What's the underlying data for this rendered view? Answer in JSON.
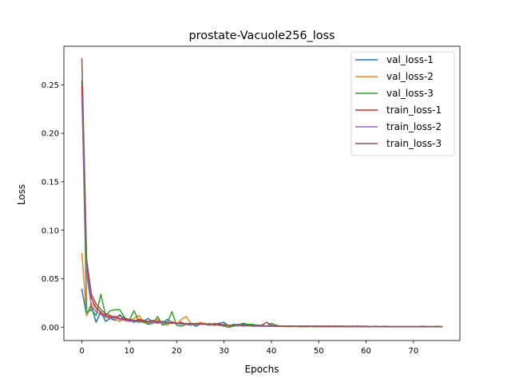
{
  "chart_data": {
    "type": "line",
    "title": "prostate-Vacuole256_loss",
    "xlabel": "Epochs",
    "ylabel": "Loss",
    "xlim": [
      -3.8,
      79.8
    ],
    "ylim": [
      -0.0138,
      0.2898
    ],
    "xticks": [
      0,
      10,
      20,
      30,
      40,
      50,
      60,
      70
    ],
    "xtick_labels": [
      "0",
      "10",
      "20",
      "30",
      "40",
      "50",
      "60",
      "70"
    ],
    "yticks": [
      0.0,
      0.05,
      0.1,
      0.15,
      0.2,
      0.25
    ],
    "ytick_labels": [
      "0.00",
      "0.05",
      "0.10",
      "0.15",
      "0.20",
      "0.25"
    ],
    "grid": false,
    "legend_position": "top-right",
    "x": [
      0,
      1,
      2,
      3,
      4,
      5,
      6,
      7,
      8,
      9,
      10,
      11,
      12,
      13,
      14,
      15,
      16,
      17,
      18,
      19,
      20,
      21,
      22,
      23,
      24,
      25,
      26,
      27,
      28,
      29,
      30,
      31,
      32,
      33,
      34,
      35,
      36,
      37,
      38,
      39,
      40,
      41,
      42,
      43,
      44,
      45,
      46,
      47,
      48,
      49,
      50,
      51,
      52,
      53,
      54,
      55,
      56,
      57,
      58,
      59,
      60,
      61,
      62,
      63,
      64,
      65,
      66,
      67,
      68,
      69,
      70,
      71,
      72,
      73,
      74,
      75,
      76
    ],
    "series": [
      {
        "name": "val_loss-1",
        "color": "#1f77b4",
        "values": [
          0.039,
          0.012,
          0.022,
          0.005,
          0.016,
          0.006,
          0.009,
          0.007,
          0.013,
          0.007,
          0.008,
          0.005,
          0.007,
          0.006,
          0.009,
          0.005,
          0.006,
          0.004,
          0.008,
          0.005,
          0.004,
          0.005,
          0.003,
          0.004,
          0.001,
          0.003,
          0.004,
          0.002,
          0.003,
          0.004,
          0.005,
          0.001,
          0.003,
          0.002,
          0.003,
          0.002,
          0.001,
          0.002,
          0.002,
          0.001,
          0.002,
          0.001,
          0.001,
          0.001,
          0.001,
          0.001,
          0.0005,
          0.001,
          0.001,
          0.0005,
          0.001,
          0.0005,
          0.001,
          0.0005,
          0.001,
          0.0005,
          0.0005,
          0.0005,
          0.001,
          0.0005,
          0.0005,
          0.0005,
          0.0005,
          0.0005,
          0.001,
          0.0005,
          0.0005,
          0.0005,
          0.0005,
          0.0005,
          0.0005,
          0.0005,
          0.001,
          0.0005,
          0.0005,
          0.0005,
          0.0005
        ]
      },
      {
        "name": "val_loss-2",
        "color": "#ff7f0e",
        "values": [
          0.076,
          0.012,
          0.025,
          0.02,
          0.015,
          0.01,
          0.012,
          0.008,
          0.006,
          0.01,
          0.007,
          0.009,
          0.012,
          0.006,
          0.004,
          0.006,
          0.008,
          0.004,
          0.002,
          0.006,
          0.003,
          0.008,
          0.011,
          0.004,
          0.003,
          0.005,
          0.003,
          0.004,
          0.002,
          0.003,
          0.002,
          0.001,
          0.002,
          0.001,
          0.002,
          0.001,
          0.002,
          0.001,
          0.001,
          0.001,
          0.001,
          0.001,
          0.001,
          0.0005,
          0.001,
          0.0005,
          0.001,
          0.0005,
          0.0005,
          0.001,
          0.0005,
          0.0005,
          0.0005,
          0.0005,
          0.0005,
          0.0005,
          0.0005,
          0.0005,
          0.0005,
          0.0005,
          0.0005,
          0.0005,
          0.0005,
          0.0005,
          0.0005,
          0.0005,
          0.0005,
          0.0005,
          0.0005,
          0.0005,
          0.0005,
          0.0005,
          0.0005,
          0.0005,
          0.0005,
          0.0005,
          0.0005
        ]
      },
      {
        "name": "val_loss-3",
        "color": "#2ca02c",
        "values": [
          0.254,
          0.015,
          0.018,
          0.012,
          0.034,
          0.012,
          0.017,
          0.018,
          0.018,
          0.01,
          0.007,
          0.017,
          0.006,
          0.005,
          0.003,
          0.004,
          0.011,
          0.002,
          0.004,
          0.016,
          0.002,
          0.001,
          0.003,
          0.002,
          0.004,
          0.003,
          0.003,
          0.002,
          0.004,
          0.002,
          0.001,
          0.0,
          0.001,
          0.002,
          0.004,
          0.003,
          0.003,
          0.002,
          0.001,
          0.001,
          0.004,
          0.002,
          0.001,
          0.001,
          0.0005,
          0.001,
          0.0005,
          0.0005,
          0.001,
          0.0005,
          0.0005,
          0.0005,
          0.001,
          0.0005,
          0.0005,
          0.0005,
          0.0005,
          0.001,
          0.0005,
          0.0005,
          0.0005,
          0.0005,
          0.0005,
          0.0005,
          0.0005,
          0.0005,
          0.0005,
          0.0005,
          0.0005,
          0.0005,
          0.0005,
          0.0005,
          0.0005,
          0.0005,
          0.0005,
          0.001,
          0.0005
        ]
      },
      {
        "name": "train_loss-1",
        "color": "#d62728",
        "values": [
          0.249,
          0.065,
          0.03,
          0.02,
          0.015,
          0.012,
          0.01,
          0.011,
          0.009,
          0.008,
          0.007,
          0.006,
          0.008,
          0.007,
          0.006,
          0.005,
          0.006,
          0.005,
          0.004,
          0.005,
          0.004,
          0.004,
          0.003,
          0.004,
          0.003,
          0.003,
          0.003,
          0.003,
          0.002,
          0.003,
          0.002,
          0.002,
          0.002,
          0.002,
          0.002,
          0.002,
          0.001,
          0.001,
          0.002,
          0.001,
          0.001,
          0.001,
          0.001,
          0.001,
          0.001,
          0.001,
          0.001,
          0.001,
          0.001,
          0.001,
          0.001,
          0.001,
          0.001,
          0.001,
          0.001,
          0.001,
          0.0005,
          0.001,
          0.0005,
          0.0005,
          0.0005,
          0.0005,
          0.0005,
          0.0005,
          0.0005,
          0.0005,
          0.0005,
          0.0005,
          0.0005,
          0.0005,
          0.0005,
          0.0005,
          0.0005,
          0.0005,
          0.0005,
          0.0005,
          0.0005
        ]
      },
      {
        "name": "train_loss-2",
        "color": "#9467bd",
        "values": [
          0.237,
          0.055,
          0.022,
          0.016,
          0.013,
          0.011,
          0.009,
          0.01,
          0.008,
          0.007,
          0.006,
          0.006,
          0.005,
          0.006,
          0.005,
          0.005,
          0.004,
          0.005,
          0.004,
          0.004,
          0.004,
          0.003,
          0.004,
          0.003,
          0.003,
          0.003,
          0.003,
          0.002,
          0.003,
          0.002,
          0.002,
          0.002,
          0.002,
          0.002,
          0.001,
          0.002,
          0.001,
          0.001,
          0.001,
          0.001,
          0.001,
          0.001,
          0.001,
          0.001,
          0.001,
          0.001,
          0.001,
          0.001,
          0.0005,
          0.001,
          0.001,
          0.0005,
          0.0005,
          0.0005,
          0.0005,
          0.0005,
          0.0005,
          0.0005,
          0.0005,
          0.0005,
          0.0005,
          0.0005,
          0.0005,
          0.0005,
          0.0005,
          0.0005,
          0.0005,
          0.0005,
          0.0005,
          0.0005,
          0.0005,
          0.0005,
          0.0005,
          0.0005,
          0.0005,
          0.0005,
          0.0005
        ]
      },
      {
        "name": "train_loss-3",
        "color": "#8c564b",
        "values": [
          0.277,
          0.07,
          0.034,
          0.024,
          0.018,
          0.014,
          0.012,
          0.01,
          0.012,
          0.009,
          0.008,
          0.007,
          0.007,
          0.006,
          0.006,
          0.007,
          0.005,
          0.006,
          0.005,
          0.004,
          0.004,
          0.005,
          0.003,
          0.004,
          0.003,
          0.004,
          0.003,
          0.003,
          0.003,
          0.002,
          0.003,
          0.002,
          0.002,
          0.003,
          0.002,
          0.002,
          0.002,
          0.002,
          0.002,
          0.005,
          0.002,
          0.001,
          0.001,
          0.001,
          0.001,
          0.001,
          0.001,
          0.001,
          0.001,
          0.001,
          0.001,
          0.001,
          0.001,
          0.001,
          0.001,
          0.001,
          0.001,
          0.001,
          0.001,
          0.001,
          0.001,
          0.0005,
          0.001,
          0.0005,
          0.0005,
          0.0005,
          0.0005,
          0.0005,
          0.0005,
          0.0005,
          0.0005,
          0.0005,
          0.0005,
          0.0005,
          0.0005,
          0.0005,
          0.0005
        ]
      }
    ]
  }
}
